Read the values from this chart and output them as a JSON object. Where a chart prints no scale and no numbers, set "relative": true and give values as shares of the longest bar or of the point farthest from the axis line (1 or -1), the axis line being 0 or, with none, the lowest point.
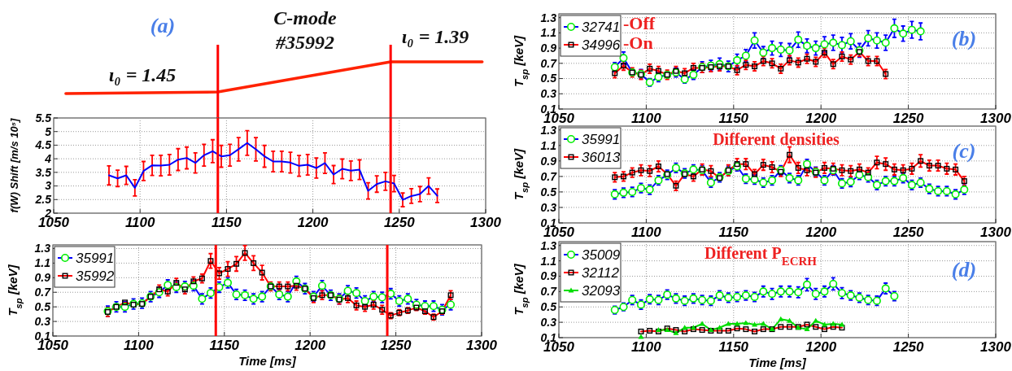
{
  "chart_data": [
    {
      "type": "line",
      "relative": true,
      "xlim": [
        1050,
        1300
      ],
      "annotations": [
        "(a)",
        "C-mode",
        "#35992",
        "ι₀ = 1.45",
        "ι₀ = 1.39"
      ],
      "series": [
        {
          "color": "#ff2200",
          "x": [
            1057,
            1145,
            1245,
            1298
          ],
          "values": [
            0,
            0.05,
            1,
            1
          ]
        }
      ],
      "ref_lines": [
        {
          "axis": "x",
          "value": 1145,
          "color": "#ff0000"
        },
        {
          "axis": "x",
          "value": 1245,
          "color": "#ff0000"
        }
      ]
    },
    {
      "type": "line",
      "ylabel": "f(W) Shift [m/s 10⁵]",
      "xlim": [
        1050,
        1300
      ],
      "ylim": [
        2,
        5.5
      ],
      "xticks": [
        1050,
        1100,
        1150,
        1200,
        1250,
        1300
      ],
      "yticks": [
        2,
        2.5,
        3,
        3.5,
        4,
        4.5,
        5,
        5.5
      ],
      "grid": true,
      "series": [
        {
          "color": "#0000ff",
          "x": [
            1082,
            1087,
            1092,
            1097,
            1102,
            1107,
            1112,
            1117,
            1122,
            1127,
            1132,
            1137,
            1142,
            1147,
            1152,
            1157,
            1162,
            1167,
            1172,
            1177,
            1182,
            1187,
            1192,
            1197,
            1202,
            1207,
            1212,
            1217,
            1222,
            1227,
            1232,
            1237,
            1242,
            1247,
            1252,
            1257,
            1262,
            1267,
            1272
          ],
          "values": [
            3.39,
            3.28,
            3.39,
            2.93,
            3.55,
            3.76,
            3.75,
            3.78,
            3.97,
            4.03,
            3.85,
            4.13,
            4.28,
            4.09,
            4.13,
            4.35,
            4.58,
            4.35,
            4.09,
            3.9,
            3.9,
            3.86,
            3.74,
            3.78,
            3.66,
            3.84,
            3.42,
            3.63,
            3.56,
            3.6,
            2.82,
            3.07,
            3.17,
            3.09,
            2.49,
            2.63,
            2.7,
            3.0,
            2.64
          ],
          "errors": [
            0.35,
            0.3,
            0.33,
            0.3,
            0.35,
            0.37,
            0.38,
            0.38,
            0.4,
            0.4,
            0.37,
            0.4,
            0.42,
            0.4,
            0.4,
            0.43,
            0.45,
            0.43,
            0.4,
            0.38,
            0.38,
            0.38,
            0.38,
            0.38,
            0.37,
            0.38,
            0.33,
            0.36,
            0.36,
            0.36,
            0.3,
            0.3,
            0.33,
            0.3,
            0.25,
            0.27,
            0.28,
            0.3,
            0.25
          ]
        }
      ],
      "ref_lines": [
        {
          "axis": "x",
          "value": 1145,
          "color": "#ff0000"
        },
        {
          "axis": "x",
          "value": 1245,
          "color": "#ff0000"
        }
      ]
    },
    {
      "type": "line",
      "xlabel": "Time [ms]",
      "ylabel": "T$_{sp}$ [keV]",
      "xlim": [
        1050,
        1300
      ],
      "ylim": [
        0.1,
        1.35
      ],
      "xticks": [
        1050,
        1100,
        1150,
        1200,
        1250,
        1300
      ],
      "yticks": [
        0.1,
        0.3,
        0.5,
        0.7,
        0.9,
        1.1,
        1.3
      ],
      "grid": true,
      "legend": "top left",
      "series": [
        {
          "name": "35991",
          "color": "#0000ff",
          "marker": "circle",
          "x": [
            1082,
            1087,
            1092,
            1097,
            1102,
            1107,
            1112,
            1117,
            1122,
            1127,
            1132,
            1137,
            1142,
            1147,
            1152,
            1157,
            1162,
            1167,
            1172,
            1177,
            1182,
            1187,
            1192,
            1197,
            1202,
            1207,
            1212,
            1217,
            1222,
            1227,
            1232,
            1237,
            1242,
            1247,
            1252,
            1257,
            1262,
            1267,
            1272,
            1277,
            1282
          ],
          "values": [
            0.44,
            0.5,
            0.5,
            0.54,
            0.55,
            0.64,
            0.7,
            0.8,
            0.77,
            0.78,
            0.79,
            0.61,
            0.69,
            0.77,
            0.83,
            0.67,
            0.66,
            0.61,
            0.64,
            0.78,
            0.67,
            0.64,
            0.85,
            0.75,
            0.64,
            0.79,
            0.66,
            0.61,
            0.72,
            0.69,
            0.58,
            0.64,
            0.63,
            0.68,
            0.58,
            0.61,
            0.53,
            0.51,
            0.51,
            0.46,
            0.53
          ],
          "errors": [
            0.07,
            0.07,
            0.07,
            0.07,
            0.07,
            0.07,
            0.07,
            0.07,
            0.07,
            0.07,
            0.07,
            0.07,
            0.07,
            0.07,
            0.07,
            0.07,
            0.07,
            0.07,
            0.07,
            null,
            0.07,
            0.07,
            0.07,
            0.07,
            0.07,
            0.07,
            0.07,
            0.07,
            0.07,
            0.07,
            0.07,
            0.07,
            0.07,
            0.07,
            0.07,
            0.07,
            0.07,
            0.07,
            0.07,
            0.07,
            0.07
          ]
        },
        {
          "name": "35992",
          "color": "#ff0000",
          "marker": "square",
          "x": [
            1082,
            1087,
            1092,
            1097,
            1102,
            1107,
            1112,
            1117,
            1122,
            1127,
            1132,
            1137,
            1142,
            1147,
            1152,
            1157,
            1162,
            1167,
            1172,
            1177,
            1182,
            1187,
            1192,
            1197,
            1202,
            1207,
            1212,
            1217,
            1222,
            1227,
            1232,
            1237,
            1242,
            1247,
            1252,
            1257,
            1262,
            1267,
            1272,
            1277,
            1282
          ],
          "values": [
            0.43,
            0.5,
            0.56,
            0.53,
            0.54,
            0.64,
            0.74,
            0.71,
            0.83,
            0.74,
            0.85,
            0.89,
            1.13,
            0.96,
            1.02,
            1.09,
            1.24,
            1.1,
            0.97,
            0.78,
            0.78,
            0.78,
            0.79,
            0.75,
            0.62,
            0.66,
            0.66,
            0.6,
            0.62,
            0.52,
            0.5,
            0.53,
            0.46,
            0.38,
            0.42,
            0.45,
            0.49,
            0.44,
            0.36,
            0.44,
            0.66
          ],
          "errors": [
            0.06,
            null,
            null,
            null,
            null,
            null,
            0.06,
            0.06,
            0.06,
            0.06,
            0.06,
            0.06,
            0.1,
            0.08,
            0.1,
            0.1,
            0.1,
            0.1,
            0.1,
            0.06,
            0.06,
            0.06,
            0.06,
            null,
            0.06,
            0.06,
            null,
            0.06,
            0.06,
            0.06,
            0.06,
            0.06,
            0.06,
            0.04,
            0.04,
            0.04,
            0.04,
            0.04,
            0.04,
            0.04,
            0.06
          ]
        }
      ],
      "ref_lines": [
        {
          "axis": "x",
          "value": 1145,
          "color": "#ff0000"
        },
        {
          "axis": "x",
          "value": 1245,
          "color": "#ff0000"
        }
      ]
    },
    {
      "type": "line",
      "ylabel": "T$_{sp}$ [keV]",
      "xlim": [
        1050,
        1300
      ],
      "ylim": [
        0.1,
        1.35
      ],
      "xticks": [
        1050,
        1100,
        1150,
        1200,
        1250,
        1300
      ],
      "yticks": [
        0.1,
        0.3,
        0.5,
        0.7,
        0.9,
        1.1,
        1.3
      ],
      "grid": true,
      "legend": "top left",
      "annotations": [
        "-Off",
        "-On",
        "(b)"
      ],
      "series": [
        {
          "name": "32741",
          "color": "#0000ff",
          "marker": "circle",
          "x": [
            1082,
            1087,
            1092,
            1097,
            1102,
            1107,
            1112,
            1117,
            1122,
            1127,
            1132,
            1137,
            1142,
            1147,
            1152,
            1157,
            1162,
            1167,
            1172,
            1177,
            1182,
            1187,
            1192,
            1197,
            1202,
            1207,
            1212,
            1217,
            1222,
            1227,
            1232,
            1237,
            1242,
            1247,
            1252,
            1257
          ],
          "values": [
            0.65,
            0.77,
            0.58,
            0.56,
            0.45,
            0.52,
            0.55,
            0.58,
            0.49,
            0.55,
            0.65,
            0.67,
            0.69,
            0.66,
            0.74,
            0.8,
            1.0,
            0.84,
            0.9,
            0.88,
            0.87,
            1.01,
            0.93,
            0.9,
            0.95,
            0.97,
            0.94,
            0.99,
            0.87,
            1.03,
            1.0,
            0.97,
            1.16,
            1.09,
            1.14,
            1.12
          ],
          "errors": [
            0.06,
            0.08,
            null,
            0.06,
            0.05,
            0.06,
            null,
            0.06,
            0.05,
            0.06,
            0.07,
            0.07,
            0.08,
            0.07,
            0.08,
            0.08,
            0.1,
            0.08,
            0.09,
            0.09,
            0.09,
            0.1,
            0.09,
            0.09,
            0.1,
            0.1,
            0.1,
            0.1,
            0.09,
            0.1,
            0.1,
            0.1,
            0.12,
            0.1,
            0.11,
            0.11
          ]
        },
        {
          "name": "34996",
          "color": "#ff0000",
          "marker": "square",
          "x": [
            1082,
            1087,
            1092,
            1097,
            1102,
            1107,
            1112,
            1117,
            1122,
            1127,
            1132,
            1137,
            1142,
            1147,
            1152,
            1157,
            1162,
            1167,
            1172,
            1177,
            1182,
            1187,
            1192,
            1197,
            1202,
            1207,
            1212,
            1217,
            1222,
            1227,
            1232,
            1237
          ],
          "values": [
            0.57,
            0.67,
            0.58,
            0.55,
            0.63,
            0.6,
            0.55,
            0.6,
            0.57,
            0.64,
            0.64,
            0.65,
            0.66,
            0.66,
            0.61,
            0.68,
            0.66,
            0.73,
            0.7,
            0.63,
            0.74,
            0.71,
            0.76,
            0.72,
            0.84,
            0.69,
            0.79,
            0.75,
            0.85,
            0.73,
            0.73,
            0.56
          ],
          "errors": [
            0.06,
            0.06,
            0.06,
            0.06,
            0.06,
            0.06,
            0.06,
            0.06,
            0.06,
            0.06,
            0.06,
            0.06,
            0.06,
            null,
            0.06,
            0.06,
            0.06,
            0.06,
            0.06,
            0.06,
            0.06,
            0.06,
            0.06,
            0.06,
            0.06,
            0.06,
            0.06,
            0.06,
            0.06,
            0.06,
            0.06,
            0.06
          ]
        }
      ]
    },
    {
      "type": "line",
      "ylabel": "T$_{sp}$ [keV]",
      "xlim": [
        1050,
        1300
      ],
      "ylim": [
        0.1,
        1.35
      ],
      "xticks": [
        1050,
        1100,
        1150,
        1200,
        1250,
        1300
      ],
      "yticks": [
        0.1,
        0.3,
        0.5,
        0.7,
        0.9,
        1.1,
        1.3
      ],
      "grid": true,
      "legend": "top left",
      "annotations": [
        "Different densities",
        "(c)"
      ],
      "series": [
        {
          "name": "35991",
          "color": "#0000ff",
          "marker": "circle",
          "x": [
            1082,
            1087,
            1092,
            1097,
            1102,
            1107,
            1112,
            1117,
            1122,
            1127,
            1132,
            1137,
            1142,
            1147,
            1152,
            1157,
            1162,
            1167,
            1172,
            1177,
            1182,
            1187,
            1192,
            1197,
            1202,
            1207,
            1212,
            1217,
            1222,
            1227,
            1232,
            1237,
            1242,
            1247,
            1252,
            1257,
            1262,
            1267,
            1272,
            1277,
            1282
          ],
          "values": [
            0.47,
            0.49,
            0.5,
            0.55,
            0.53,
            0.65,
            0.72,
            0.81,
            0.74,
            0.79,
            0.78,
            0.62,
            0.69,
            0.77,
            0.83,
            0.67,
            0.66,
            0.62,
            0.65,
            0.78,
            0.68,
            0.65,
            0.86,
            0.76,
            0.65,
            0.78,
            0.61,
            0.63,
            0.72,
            0.69,
            0.59,
            0.64,
            0.64,
            0.68,
            0.59,
            0.62,
            0.54,
            0.51,
            0.51,
            0.47,
            0.53
          ],
          "errors": [
            0.06,
            0.06,
            0.06,
            0.06,
            0.06,
            0.06,
            0.06,
            0.06,
            0.06,
            0.06,
            0.06,
            0.06,
            0.06,
            0.06,
            0.06,
            0.06,
            0.06,
            0.06,
            0.06,
            0.06,
            0.06,
            0.06,
            0.06,
            0.06,
            0.06,
            0.06,
            0.06,
            0.06,
            0.06,
            0.06,
            0.06,
            0.06,
            0.06,
            0.06,
            0.06,
            0.06,
            0.06,
            0.06,
            0.06,
            0.06,
            0.06
          ]
        },
        {
          "name": "36013",
          "color": "#ff0000",
          "marker": "square",
          "x": [
            1082,
            1087,
            1092,
            1097,
            1102,
            1107,
            1112,
            1117,
            1122,
            1127,
            1132,
            1137,
            1142,
            1147,
            1152,
            1157,
            1162,
            1167,
            1172,
            1177,
            1182,
            1187,
            1192,
            1197,
            1202,
            1207,
            1212,
            1217,
            1222,
            1227,
            1232,
            1237,
            1242,
            1247,
            1252,
            1257,
            1262,
            1267,
            1272,
            1277,
            1282
          ],
          "values": [
            0.69,
            0.7,
            0.75,
            0.78,
            0.77,
            0.83,
            0.73,
            0.58,
            0.73,
            0.7,
            0.79,
            0.77,
            0.68,
            0.78,
            0.86,
            0.86,
            0.73,
            0.85,
            0.82,
            0.76,
            0.98,
            0.81,
            0.78,
            0.75,
            0.81,
            0.8,
            0.78,
            0.77,
            0.79,
            0.75,
            0.88,
            0.86,
            0.79,
            0.78,
            0.8,
            0.9,
            0.84,
            0.84,
            0.8,
            0.79,
            0.64
          ],
          "errors": [
            0.06,
            0.06,
            0.06,
            0.07,
            0.07,
            0.07,
            null,
            0.06,
            null,
            0.06,
            0.07,
            0.07,
            null,
            0.07,
            0.07,
            0.07,
            0.06,
            0.07,
            0.07,
            0.06,
            0.1,
            0.07,
            0.07,
            0.06,
            0.07,
            0.07,
            0.07,
            0.07,
            0.07,
            0.06,
            0.08,
            0.08,
            0.07,
            0.07,
            0.07,
            0.08,
            0.07,
            0.07,
            0.07,
            0.07,
            0.06
          ]
        }
      ]
    },
    {
      "type": "line",
      "xlabel": "Time [ms]",
      "ylabel": "T$_{sp}$ [keV]",
      "xlim": [
        1050,
        1300
      ],
      "ylim": [
        0.1,
        1.35
      ],
      "xticks": [
        1050,
        1100,
        1150,
        1200,
        1250,
        1300
      ],
      "yticks": [
        0.1,
        0.3,
        0.5,
        0.7,
        0.9,
        1.1,
        1.3
      ],
      "grid": true,
      "legend": "top left",
      "annotations": [
        "Different P$_{ECRH}$",
        "(d)"
      ],
      "series": [
        {
          "name": "35009",
          "color": "#0000ff",
          "marker": "circle",
          "x": [
            1082,
            1087,
            1092,
            1097,
            1102,
            1107,
            1112,
            1117,
            1122,
            1127,
            1132,
            1137,
            1142,
            1147,
            1152,
            1157,
            1162,
            1167,
            1172,
            1177,
            1182,
            1187,
            1192,
            1197,
            1202,
            1207,
            1212,
            1217,
            1222,
            1227,
            1232,
            1237,
            1242
          ],
          "values": [
            0.46,
            0.5,
            0.59,
            0.53,
            0.6,
            0.59,
            0.66,
            0.61,
            0.58,
            0.61,
            0.59,
            0.58,
            0.65,
            0.62,
            0.63,
            0.65,
            0.63,
            0.7,
            0.67,
            0.7,
            0.7,
            0.69,
            0.79,
            0.67,
            0.7,
            0.8,
            0.68,
            0.65,
            0.62,
            0.59,
            0.58,
            0.74,
            0.64
          ],
          "errors": [
            0.05,
            0.05,
            0.06,
            0.06,
            0.06,
            0.06,
            0.06,
            0.06,
            0.06,
            0.06,
            0.06,
            0.06,
            0.06,
            0.06,
            0.06,
            0.06,
            0.06,
            0.07,
            0.07,
            0.07,
            0.07,
            0.07,
            0.08,
            0.07,
            0.07,
            0.08,
            0.07,
            0.06,
            0.06,
            0.06,
            0.06,
            0.07,
            0.06
          ]
        },
        {
          "name": "32112",
          "color": "#ff0000",
          "marker": "square",
          "x": [
            1097,
            1102,
            1107,
            1112,
            1117,
            1122,
            1127,
            1132,
            1137,
            1142,
            1147,
            1152,
            1157,
            1162,
            1167,
            1172,
            1177,
            1182,
            1187,
            1192,
            1197,
            1202,
            1207,
            1212
          ],
          "values": [
            0.18,
            0.19,
            0.18,
            0.22,
            0.2,
            0.18,
            0.21,
            0.2,
            0.19,
            0.19,
            0.19,
            0.22,
            0.21,
            0.18,
            0.21,
            0.21,
            0.24,
            0.24,
            0.24,
            0.27,
            0.24,
            0.21,
            0.24,
            0.23
          ]
        },
        {
          "name": "32093",
          "color": "#00dd00",
          "marker": "triangle",
          "x": [
            1097,
            1102,
            1107,
            1112,
            1117,
            1122,
            1127,
            1132,
            1137,
            1142,
            1147,
            1152,
            1157,
            1162,
            1167,
            1172,
            1177,
            1182,
            1187,
            1192,
            1197,
            1202,
            1207,
            1212
          ],
          "values": [
            0.11,
            null,
            0.2,
            0.2,
            0.16,
            0.23,
            0.23,
            0.28,
            0.2,
            0.23,
            0.28,
            0.28,
            0.29,
            0.27,
            0.28,
            0.21,
            0.34,
            0.32,
            0.23,
            0.21,
            0.32,
            0.27,
            0.28,
            0.27
          ]
        }
      ]
    }
  ]
}
